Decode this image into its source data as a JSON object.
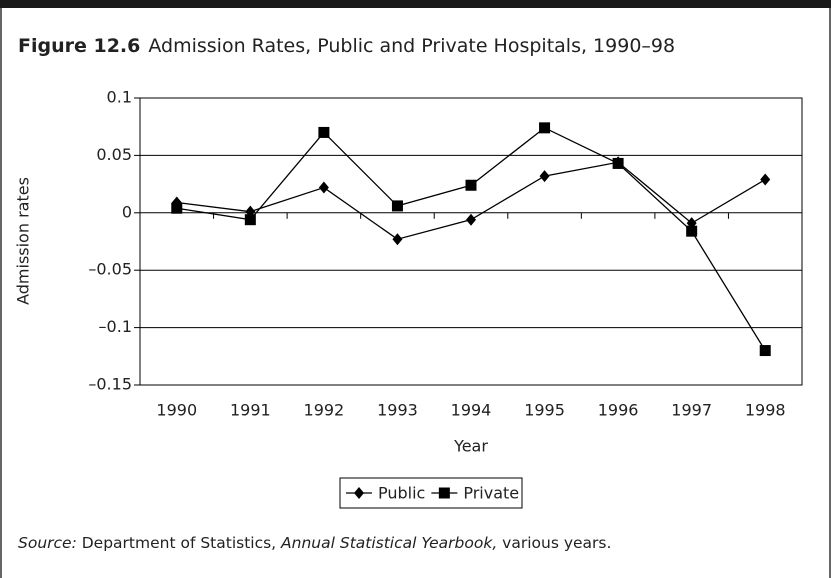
{
  "chart_data": {
    "type": "line",
    "figure_label": "Figure 12.6",
    "title": "Admission Rates, Public and Private Hospitals, 1990–98",
    "categories": [
      "1990",
      "1991",
      "1992",
      "1993",
      "1994",
      "1995",
      "1996",
      "1997",
      "1998"
    ],
    "series": [
      {
        "name": "Public",
        "color": "#000000",
        "marker": "diamond",
        "values": [
          0.009,
          0.001,
          0.022,
          -0.023,
          -0.006,
          0.032,
          0.044,
          -0.009,
          0.029
        ]
      },
      {
        "name": "Private",
        "color": "#000000",
        "marker": "square",
        "values": [
          0.004,
          -0.006,
          0.07,
          0.006,
          0.024,
          0.074,
          0.043,
          -0.016,
          -0.12
        ]
      }
    ],
    "ylim": [
      -0.15,
      0.1
    ],
    "yticks": [
      {
        "value": -0.15,
        "label": "–0.15"
      },
      {
        "value": -0.1,
        "label": "–0.1"
      },
      {
        "value": -0.05,
        "label": "–0.05"
      },
      0,
      0.05,
      0.1
    ],
    "grid": true,
    "xlabel": "Year",
    "ylabel": "Admission rates",
    "legend": "bottom",
    "source": [
      "Source:",
      " Department of Statistics, ",
      "Annual Statistical Yearbook,",
      " various years."
    ]
  }
}
